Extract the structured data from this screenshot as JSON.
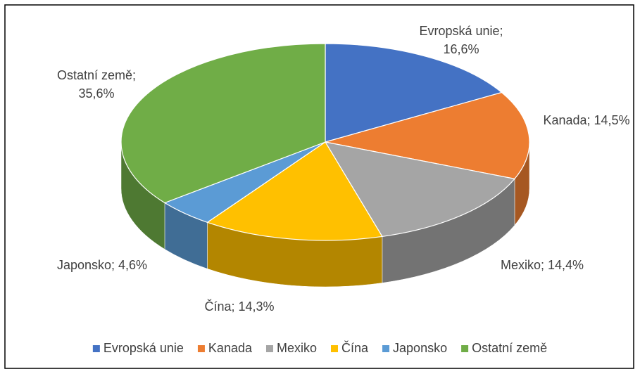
{
  "chart_data": {
    "type": "pie",
    "categories": [
      "Evropská unie",
      "Kanada",
      "Mexiko",
      "Čína",
      "Japonsko",
      "Ostatní země"
    ],
    "values": [
      16.6,
      14.5,
      14.4,
      14.3,
      4.6,
      35.6
    ],
    "value_labels": [
      "Evropská unie; 16,6%",
      "Kanada; 14,5%",
      "Mexiko; 14,4%",
      "Čína; 14,3%",
      "Japonsko; 4,6%",
      "Ostatní země; 35,6%"
    ],
    "colors": [
      "#4472c4",
      "#ed7d31",
      "#a5a5a5",
      "#ffc000",
      "#5b9bd5",
      "#70ad47"
    ],
    "legend": "bottom"
  }
}
